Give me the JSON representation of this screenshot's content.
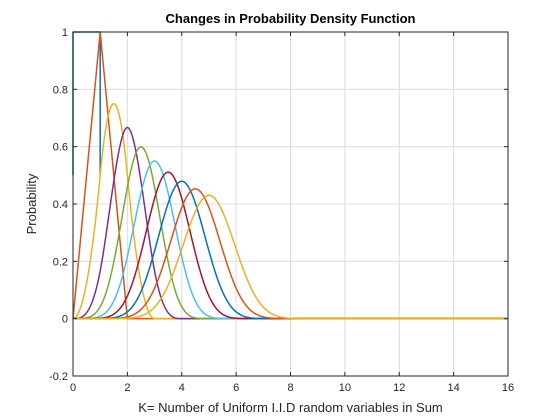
{
  "chart_data": {
    "type": "line",
    "title": "Changes in Probability Density Function",
    "xlabel": "K= Number of Uniform I.I.D random variables in Sum",
    "ylabel": "Probability",
    "xlim": [
      0,
      16
    ],
    "ylim": [
      -0.2,
      1
    ],
    "xticks": [
      0,
      2,
      4,
      6,
      8,
      10,
      12,
      14,
      16
    ],
    "xtick_labels": [
      "0",
      "2",
      "4",
      "6",
      "8",
      "10",
      "12",
      "14",
      "16"
    ],
    "yticks": [
      -0.2,
      0,
      0.2,
      0.4,
      0.6,
      0.8,
      1
    ],
    "ytick_labels": [
      "-0.2",
      "0",
      "0.2",
      "0.4",
      "0.6",
      "0.8",
      "1"
    ],
    "grid": true,
    "series": [
      {
        "n": 1,
        "color": "#0072BD",
        "peak_x": 0.5,
        "peak_y": 1.0
      },
      {
        "n": 2,
        "color": "#D95319",
        "peak_x": 1.0,
        "peak_y": 1.0
      },
      {
        "n": 3,
        "color": "#EDB120",
        "peak_x": 1.5,
        "peak_y": 0.75
      },
      {
        "n": 4,
        "color": "#7E2F8E",
        "peak_x": 2.0,
        "peak_y": 0.667
      },
      {
        "n": 5,
        "color": "#77AC30",
        "peak_x": 2.5,
        "peak_y": 0.599
      },
      {
        "n": 6,
        "color": "#4DBEEE",
        "peak_x": 3.0,
        "peak_y": 0.55
      },
      {
        "n": 7,
        "color": "#A2142F",
        "peak_x": 3.5,
        "peak_y": 0.511
      },
      {
        "n": 8,
        "color": "#0072BD",
        "peak_x": 4.0,
        "peak_y": 0.479
      },
      {
        "n": 9,
        "color": "#D95319",
        "peak_x": 4.5,
        "peak_y": 0.453
      },
      {
        "n": 10,
        "color": "#EDB120",
        "peak_x": 5.0,
        "peak_y": 0.43
      }
    ]
  }
}
